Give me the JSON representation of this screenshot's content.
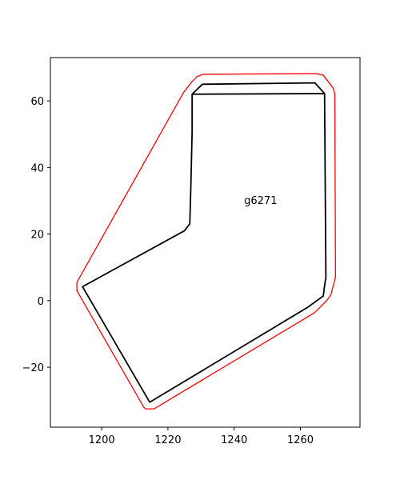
{
  "chart_data": {
    "type": "line",
    "title": "",
    "xlabel": "",
    "ylabel": "",
    "xlim": [
      1184.5,
      1278
    ],
    "ylim": [
      -38,
      73
    ],
    "xticks": [
      1200,
      1220,
      1240,
      1260
    ],
    "yticks": [
      -20,
      0,
      20,
      40,
      60
    ],
    "xtick_labels": [
      "1200",
      "1220",
      "1240",
      "1260"
    ],
    "ytick_labels": [
      "−20",
      "0",
      "20",
      "40",
      "60"
    ],
    "grid": false,
    "annotation": {
      "text": "g6271",
      "x": 1243,
      "y": 30
    },
    "series": [
      {
        "color": "#ff0000",
        "closed": true,
        "x": [
          1230.6,
          1264.9,
          1266.9,
          1269.8,
          1270.4,
          1270.6,
          1269.2,
          1268.1,
          1264.3,
          1215.8,
          1213.3,
          1212.7,
          1192.5,
          1192.5,
          1224.7,
          1227.1,
          1228.8
        ],
        "y": [
          68.0,
          68.2,
          67.7,
          64.0,
          62.2,
          7.0,
          1.8,
          0.2,
          -3.6,
          -32.5,
          -32.5,
          -32.0,
          3.0,
          5.5,
          62.5,
          65.6,
          67.3
        ]
      },
      {
        "color": "#000000",
        "closed": true,
        "x": [
          1230.4,
          1264.4,
          1267.3,
          1267.7,
          1267.5,
          1266.9,
          1262.2,
          1214.5,
          1194.2,
          1225.0,
          1226.6,
          1226.9,
          1227.3,
          1227.3
        ],
        "y": [
          65.0,
          65.4,
          62.2,
          6.8,
          5.9,
          1.4,
          -2.0,
          -30.5,
          4.2,
          21.0,
          23.1,
          33.6,
          50.7,
          62.0
        ]
      },
      {
        "color": "#000000",
        "closed": false,
        "x": [
          1227.3,
          1267.3
        ],
        "y": [
          62.0,
          62.2
        ]
      }
    ]
  }
}
